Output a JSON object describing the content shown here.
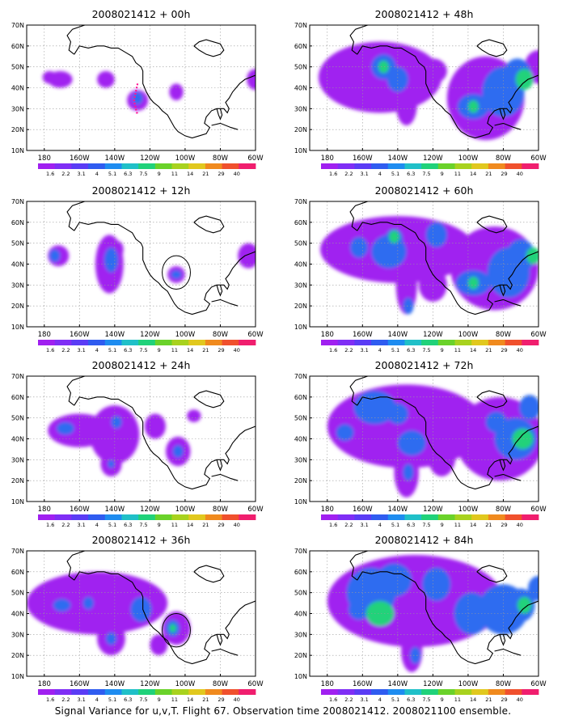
{
  "caption": "Signal Variance for u,v,T. Flight 67. Observation time 2008021412. 2008021100 ensemble.",
  "colorbar": {
    "labels": [
      "1.6",
      "2.2",
      "3.1",
      "4",
      "5.1",
      "6.3",
      "7.5",
      "9",
      "11",
      "14",
      "21",
      "29",
      "40"
    ],
    "colors": [
      "#a020f0",
      "#7f2ef5",
      "#5a3cf5",
      "#2f5cf0",
      "#1e8cf0",
      "#20c0c8",
      "#20d27a",
      "#6ad22a",
      "#a8d21e",
      "#e1c81e",
      "#f08a1e",
      "#f0502d",
      "#f01e6e"
    ]
  },
  "axes": {
    "lon_labels": [
      "180",
      "160W",
      "140W",
      "120W",
      "100W",
      "80W",
      "60W"
    ],
    "lat_labels": [
      "10N",
      "20N",
      "30N",
      "40N",
      "50N",
      "60N",
      "70N"
    ]
  },
  "chart_data": [
    {
      "type": "heatmap",
      "title": "2008021412 + 00h",
      "ylim": [
        10,
        70
      ],
      "blobs": [
        [
          189,
          44,
          7,
          4,
          1
        ],
        [
          183,
          45,
          4,
          3,
          1
        ],
        [
          215,
          44,
          5,
          4,
          1
        ],
        [
          233,
          34,
          6,
          5,
          1
        ],
        [
          233,
          35,
          3,
          3,
          2
        ],
        [
          255,
          38,
          4,
          4,
          1
        ],
        [
          300,
          44,
          5,
          5,
          1
        ]
      ],
      "track": [
        [
          233,
          42
        ],
        [
          232,
          38
        ],
        [
          231,
          34
        ],
        [
          232,
          30
        ],
        [
          233,
          27
        ]
      ]
    },
    {
      "type": "heatmap",
      "title": "2008021412 + 48h",
      "ylim": [
        10,
        70
      ],
      "blobs": [
        [
          210,
          45,
          35,
          17,
          1
        ],
        [
          212,
          50,
          7,
          6,
          2
        ],
        [
          212,
          50,
          3,
          3,
          3
        ],
        [
          220,
          44,
          6,
          6,
          2
        ],
        [
          240,
          48,
          8,
          6,
          1
        ],
        [
          225,
          32,
          6,
          10,
          1
        ],
        [
          270,
          35,
          22,
          20,
          1
        ],
        [
          263,
          31,
          9,
          6,
          2
        ],
        [
          263,
          31,
          3,
          3,
          3
        ],
        [
          280,
          38,
          12,
          12,
          2
        ],
        [
          288,
          46,
          8,
          8,
          2
        ],
        [
          292,
          44,
          5,
          5,
          3
        ],
        [
          262,
          25,
          8,
          8,
          1
        ],
        [
          300,
          50,
          8,
          8,
          1
        ]
      ],
      "track": [],
      "circle": null
    },
    {
      "type": "heatmap",
      "title": "2008021412 + 12h",
      "ylim": [
        10,
        70
      ],
      "blobs": [
        [
          188,
          44,
          6,
          5,
          1
        ],
        [
          186,
          44,
          3,
          3,
          2
        ],
        [
          217,
          40,
          8,
          14,
          1
        ],
        [
          218,
          42,
          4,
          6,
          2
        ],
        [
          222,
          47,
          3,
          4,
          1
        ],
        [
          255,
          35,
          5,
          4,
          1
        ],
        [
          255,
          35,
          3,
          2,
          2
        ],
        [
          296,
          44,
          6,
          6,
          1
        ]
      ],
      "circle": [
        255,
        36,
        8,
        8
      ]
    },
    {
      "type": "heatmap",
      "title": "2008021412 + 60h",
      "ylim": [
        10,
        70
      ],
      "blobs": [
        [
          220,
          47,
          44,
          16,
          1
        ],
        [
          215,
          46,
          10,
          8,
          2
        ],
        [
          218,
          52,
          5,
          5,
          2
        ],
        [
          218,
          53,
          3,
          3,
          3
        ],
        [
          198,
          48,
          5,
          5,
          2
        ],
        [
          242,
          54,
          6,
          6,
          2
        ],
        [
          225,
          30,
          6,
          14,
          1
        ],
        [
          226,
          20,
          3,
          4,
          2
        ],
        [
          275,
          38,
          25,
          20,
          1
        ],
        [
          263,
          31,
          10,
          6,
          2
        ],
        [
          263,
          31,
          3,
          3,
          3
        ],
        [
          283,
          36,
          12,
          12,
          2
        ],
        [
          290,
          44,
          8,
          8,
          2
        ],
        [
          297,
          44,
          4,
          4,
          3
        ],
        [
          240,
          30,
          8,
          8,
          1
        ]
      ],
      "circle": null
    },
    {
      "type": "heatmap",
      "title": "2008021412 + 24h",
      "ylim": [
        10,
        70
      ],
      "blobs": [
        [
          200,
          44,
          18,
          8,
          1
        ],
        [
          192,
          45,
          5,
          3,
          2
        ],
        [
          220,
          42,
          14,
          14,
          1
        ],
        [
          221,
          48,
          3,
          3,
          2
        ],
        [
          218,
          28,
          6,
          6,
          1
        ],
        [
          218,
          28,
          2,
          2,
          2
        ],
        [
          256,
          34,
          7,
          7,
          1
        ],
        [
          256,
          34,
          3,
          3,
          2
        ],
        [
          243,
          46,
          6,
          6,
          1
        ],
        [
          265,
          51,
          4,
          3,
          1
        ]
      ],
      "circle": null
    },
    {
      "type": "heatmap",
      "title": "2008021412 + 72h",
      "ylim": [
        10,
        70
      ],
      "blobs": [
        [
          225,
          46,
          45,
          20,
          1
        ],
        [
          207,
          55,
          12,
          8,
          2
        ],
        [
          210,
          56,
          5,
          4,
          2
        ],
        [
          220,
          52,
          6,
          5,
          2
        ],
        [
          190,
          43,
          5,
          4,
          2
        ],
        [
          190,
          43,
          2,
          2,
          2
        ],
        [
          228,
          38,
          8,
          6,
          2
        ],
        [
          225,
          24,
          7,
          12,
          1
        ],
        [
          226,
          24,
          3,
          4,
          2
        ],
        [
          245,
          32,
          8,
          10,
          1
        ],
        [
          278,
          40,
          25,
          20,
          1
        ],
        [
          287,
          40,
          12,
          10,
          2
        ],
        [
          291,
          40,
          6,
          5,
          3
        ],
        [
          276,
          48,
          6,
          5,
          2
        ],
        [
          295,
          55,
          6,
          6,
          2
        ]
      ],
      "circle": null
    },
    {
      "type": "heatmap",
      "title": "2008021412 + 36h",
      "ylim": [
        10,
        70
      ],
      "blobs": [
        [
          210,
          45,
          40,
          15,
          1
        ],
        [
          190,
          44,
          5,
          3,
          2
        ],
        [
          205,
          45,
          3,
          3,
          2
        ],
        [
          235,
          42,
          6,
          6,
          2
        ],
        [
          218,
          28,
          8,
          8,
          1
        ],
        [
          218,
          28,
          3,
          3,
          2
        ],
        [
          255,
          33,
          8,
          8,
          1
        ],
        [
          253,
          33,
          4,
          4,
          2
        ],
        [
          253,
          33,
          2,
          2,
          3
        ],
        [
          245,
          25,
          5,
          5,
          1
        ]
      ],
      "circle": [
        255,
        32,
        8,
        8
      ]
    },
    {
      "type": "heatmap",
      "title": "2008021412 + 84h",
      "ylim": [
        10,
        70
      ],
      "blobs": [
        [
          230,
          46,
          50,
          22,
          1
        ],
        [
          205,
          50,
          14,
          12,
          2
        ],
        [
          205,
          48,
          8,
          6,
          2
        ],
        [
          198,
          42,
          6,
          5,
          2
        ],
        [
          210,
          40,
          8,
          6,
          3
        ],
        [
          218,
          56,
          10,
          8,
          2
        ],
        [
          242,
          54,
          8,
          8,
          2
        ],
        [
          245,
          52,
          4,
          4,
          2
        ],
        [
          228,
          22,
          6,
          10,
          1
        ],
        [
          230,
          20,
          3,
          4,
          2
        ],
        [
          262,
          40,
          10,
          10,
          2
        ],
        [
          280,
          42,
          14,
          12,
          2
        ],
        [
          290,
          44,
          8,
          8,
          2
        ],
        [
          292,
          44,
          4,
          4,
          3
        ],
        [
          300,
          52,
          6,
          6,
          2
        ]
      ],
      "circle": null
    }
  ]
}
